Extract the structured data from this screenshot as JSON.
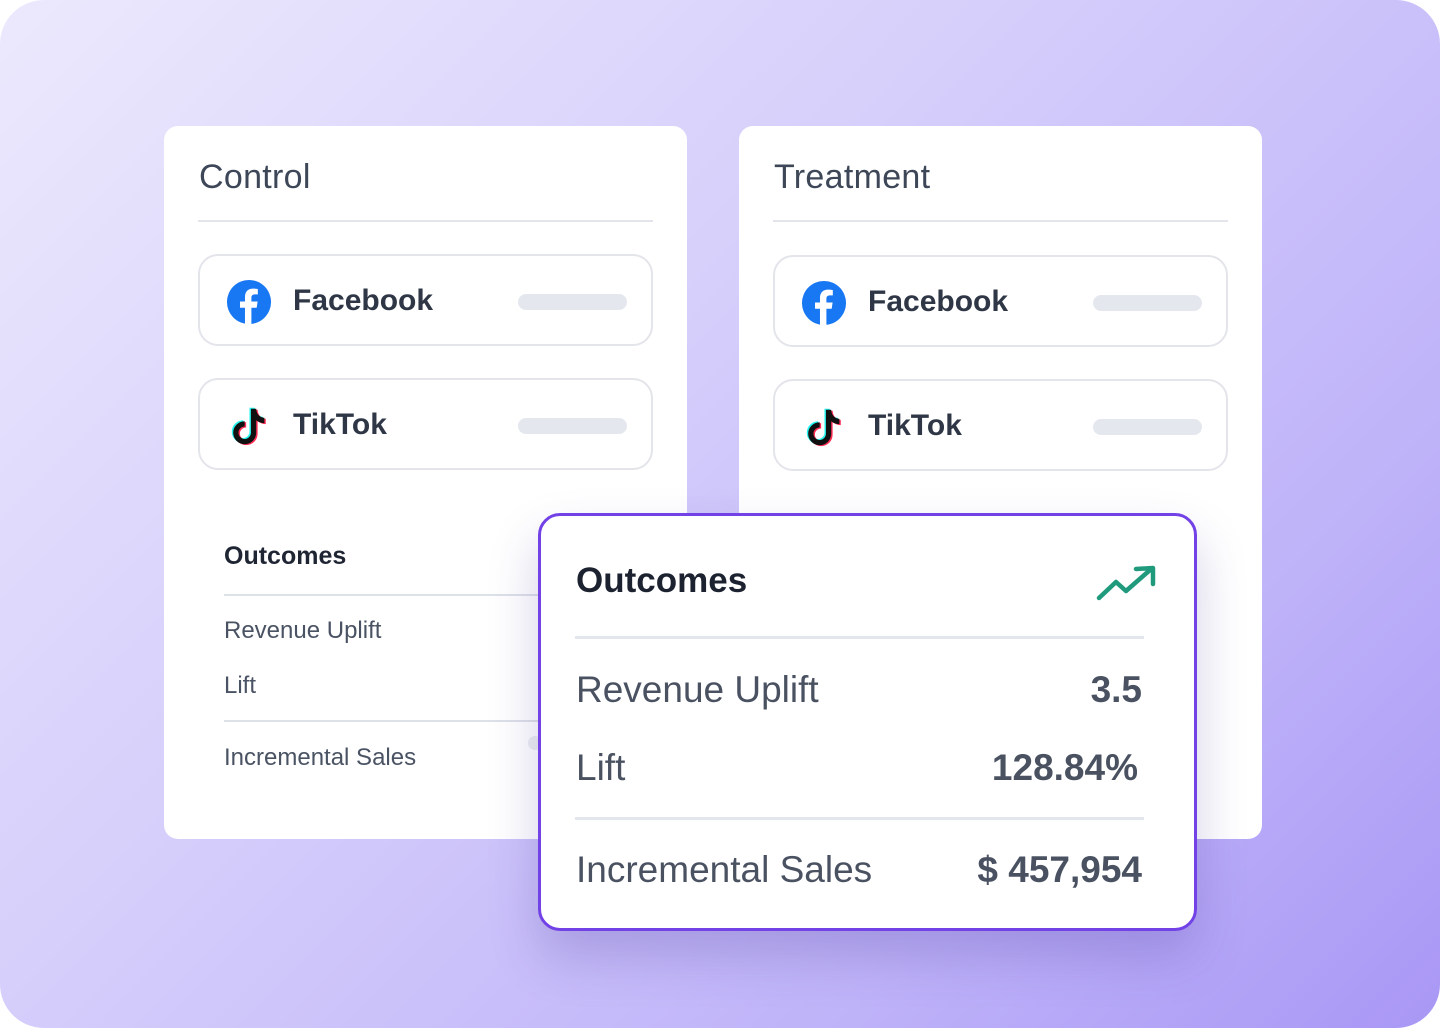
{
  "control": {
    "title": "Control",
    "channels": [
      {
        "name": "Facebook",
        "icon": "facebook-icon"
      },
      {
        "name": "TikTok",
        "icon": "tiktok-icon"
      }
    ],
    "outcomes": {
      "title": "Outcomes",
      "rows": [
        "Revenue Uplift",
        "Lift",
        "Incremental Sales"
      ]
    }
  },
  "treatment": {
    "title": "Treatment",
    "channels": [
      {
        "name": "Facebook",
        "icon": "facebook-icon"
      },
      {
        "name": "TikTok",
        "icon": "tiktok-icon"
      }
    ]
  },
  "outcomes_card": {
    "title": "Outcomes",
    "icon": "trending-up-icon",
    "rows": [
      {
        "label": "Revenue Uplift",
        "value": "3.5"
      },
      {
        "label": "Lift",
        "value": "128.84%"
      },
      {
        "label": "Incremental Sales",
        "value": "$ 457,954"
      }
    ]
  },
  "colors": {
    "accent": "#7242e6",
    "trend": "#1f9a7c",
    "facebook": "#1877f2",
    "tiktok_cyan": "#25f4ee",
    "tiktok_red": "#fe2c55"
  }
}
